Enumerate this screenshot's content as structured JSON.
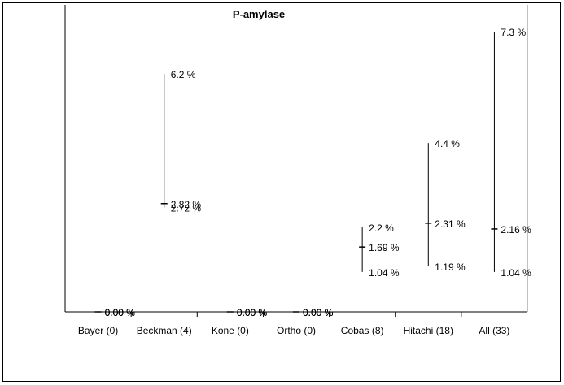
{
  "chart_data": {
    "type": "high-low-mean",
    "title": "P-amylase",
    "xlabel": "",
    "ylabel": "",
    "ylim": [
      0,
      8
    ],
    "grid": false,
    "legend": "none",
    "categories": [
      "Bayer (0)",
      "Beckman (4)",
      "Kone (0)",
      "Ortho (0)",
      "Cobas (8)",
      "Hitachi (18)",
      "All (33)"
    ],
    "series": [
      {
        "role": "high",
        "values": [
          0,
          6.2,
          0,
          0,
          2.2,
          4.4,
          7.3
        ]
      },
      {
        "role": "mean",
        "values": [
          0,
          2.82,
          0,
          0,
          1.69,
          2.31,
          2.16
        ]
      },
      {
        "role": "low",
        "values": [
          0,
          2.72,
          0,
          0,
          1.04,
          1.19,
          1.04
        ]
      }
    ],
    "labels": {
      "high": [
        "0.00 %",
        "6.2 %",
        "0.00 %",
        "0.00 %",
        "2.2 %",
        "4.4 %",
        "7.3 %"
      ],
      "mean": [
        "0.00 %",
        "2.82 %",
        "0.00 %",
        "0.00 %",
        "1.69 %",
        "2.31 %",
        "2.16 %"
      ],
      "low": [
        "0.00 %",
        "2.72 %",
        "0.00 %",
        "0.00 %",
        "1.04 %",
        "1.19 %",
        "1.04 %"
      ]
    }
  }
}
